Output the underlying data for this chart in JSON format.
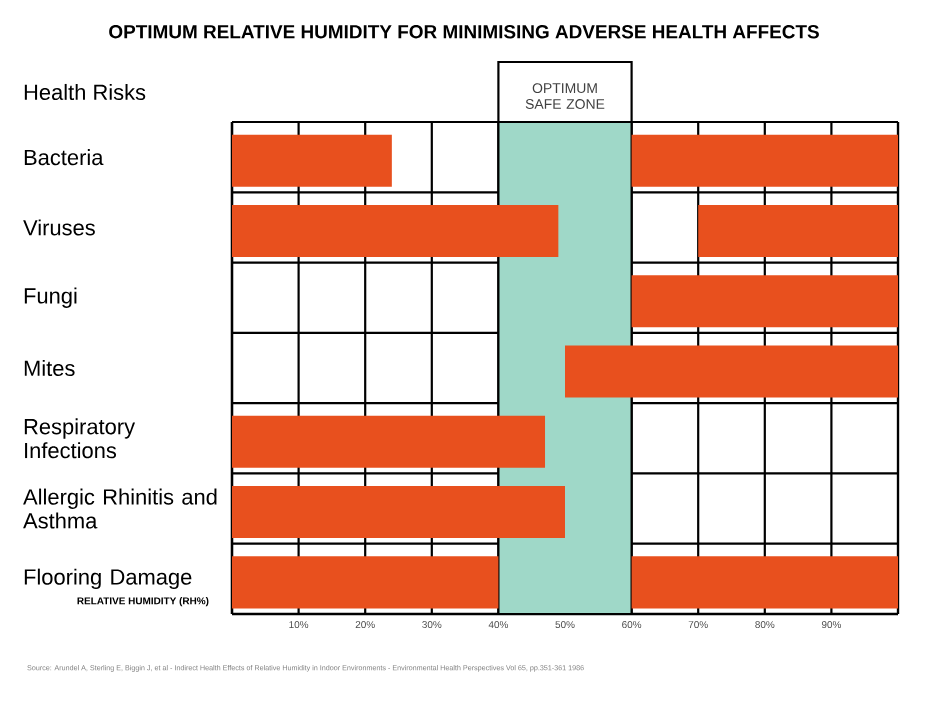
{
  "chart_data": {
    "type": "bar",
    "orientation": "horizontal",
    "title": "OPTIMUM RELATIVE HUMIDITY FOR MINIMISING ADVERSE HEALTH AFFECTS",
    "ylabel": "Health Risks",
    "xlabel": "RELATIVE HUMIDITY (RH%)",
    "categories": [
      "Bacteria",
      "Viruses",
      "Fungi",
      "Mites",
      "Respiratory Infections",
      "Allergic Rhinitis and Asthma",
      "Flooring Damage"
    ],
    "series": [
      {
        "color": "#e8501e",
        "base": [
          0,
          0,
          null,
          null,
          0,
          0,
          0
        ],
        "values": [
          24,
          49,
          null,
          null,
          47,
          50,
          40
        ]
      },
      {
        "color": "#e8501e",
        "base": [
          60,
          70,
          60,
          50,
          null,
          null,
          60
        ],
        "values": [
          40,
          30,
          40,
          50,
          null,
          null,
          40
        ]
      }
    ],
    "xlim": [
      0,
      100
    ],
    "xticks": [
      {
        "value": 0,
        "label": null
      },
      {
        "value": 10,
        "label": "10%"
      },
      {
        "value": 20,
        "label": "20%"
      },
      {
        "value": 30,
        "label": "30%"
      },
      {
        "value": 40,
        "label": "40%"
      },
      {
        "value": 50,
        "label": "50%"
      },
      {
        "value": 60,
        "label": "60%"
      },
      {
        "value": 70,
        "label": "70%"
      },
      {
        "value": 80,
        "label": "80%"
      },
      {
        "value": 90,
        "label": "90%"
      },
      {
        "value": 100,
        "label": null
      }
    ],
    "bands": [
      {
        "axis": "x",
        "from": 40,
        "to": 60,
        "label": "OPTIMUM SAFE ZONE",
        "color": "#9fd8c8"
      }
    ],
    "grid": true,
    "annotations": [
      "Source: Arundel A, Sterling E, Biggin J, et al - Indirect Health Effects of Relative Humidity in Indoor Environments - Environmental Health Perspectives Vol 65, pp.351-361 1986"
    ]
  }
}
